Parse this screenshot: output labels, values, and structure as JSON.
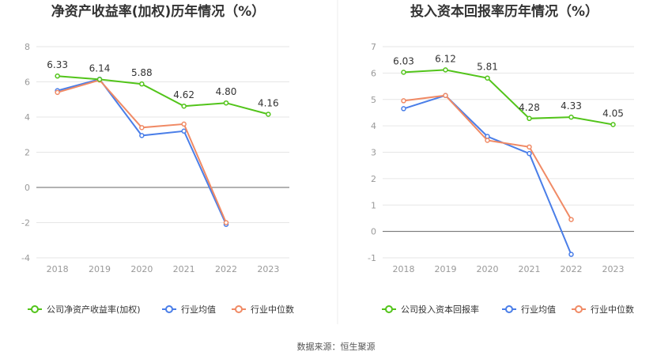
{
  "source_note": "数据来源：恒生聚源",
  "chart_data": [
    {
      "type": "line",
      "title": "净资产收益率(加权)历年情况（%）",
      "categories": [
        "2018",
        "2019",
        "2020",
        "2021",
        "2022",
        "2023"
      ],
      "ylim": [
        -4,
        8
      ],
      "yticks": [
        -4,
        -2,
        0,
        2,
        4,
        6,
        8
      ],
      "grid": true,
      "legend_position": "bottom-left",
      "series": [
        {
          "name": "公司净资产收益率(加权)",
          "color": "#52c41a",
          "values": [
            6.33,
            6.14,
            5.88,
            4.62,
            4.8,
            4.16
          ],
          "labels": [
            "6.33",
            "6.14",
            "5.88",
            "4.62",
            "4.80",
            "4.16"
          ]
        },
        {
          "name": "行业均值",
          "color": "#4a7ee8",
          "values": [
            5.5,
            6.15,
            2.95,
            3.2,
            -2.1,
            null
          ]
        },
        {
          "name": "行业中位数",
          "color": "#f08a65",
          "values": [
            5.4,
            6.1,
            3.4,
            3.6,
            -2.0,
            null
          ]
        }
      ]
    },
    {
      "type": "line",
      "title": "投入资本回报率历年情况（%）",
      "categories": [
        "2018",
        "2019",
        "2020",
        "2021",
        "2022",
        "2023"
      ],
      "ylim": [
        -1,
        7
      ],
      "yticks": [
        -1,
        0,
        1,
        2,
        3,
        4,
        5,
        6,
        7
      ],
      "grid": true,
      "legend_position": "bottom-left",
      "series": [
        {
          "name": "公司投入资本回报率",
          "color": "#52c41a",
          "values": [
            6.03,
            6.12,
            5.81,
            4.28,
            4.33,
            4.05
          ],
          "labels": [
            "6.03",
            "6.12",
            "5.81",
            "4.28",
            "4.33",
            "4.05"
          ]
        },
        {
          "name": "行业均值",
          "color": "#4a7ee8",
          "values": [
            4.65,
            5.15,
            3.6,
            2.95,
            -0.87,
            null
          ]
        },
        {
          "name": "行业中位数",
          "color": "#f08a65",
          "values": [
            4.95,
            5.15,
            3.45,
            3.2,
            0.45,
            null
          ]
        }
      ]
    }
  ]
}
